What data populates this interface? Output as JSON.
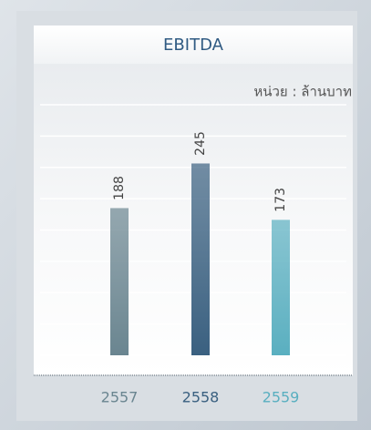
{
  "chart_data": {
    "type": "bar",
    "title": "EBITDA",
    "unit_label": "หน่วย : ล้านบาท",
    "categories": [
      "2557",
      "2558",
      "2559"
    ],
    "values": [
      188,
      245,
      173
    ],
    "colors": [
      "#6a8590",
      "#3a6080",
      "#5aafc0"
    ],
    "ylim": [
      0,
      320
    ],
    "yticks": [
      0,
      40,
      80,
      120,
      160,
      200,
      240,
      280,
      320
    ],
    "grid": true
  }
}
